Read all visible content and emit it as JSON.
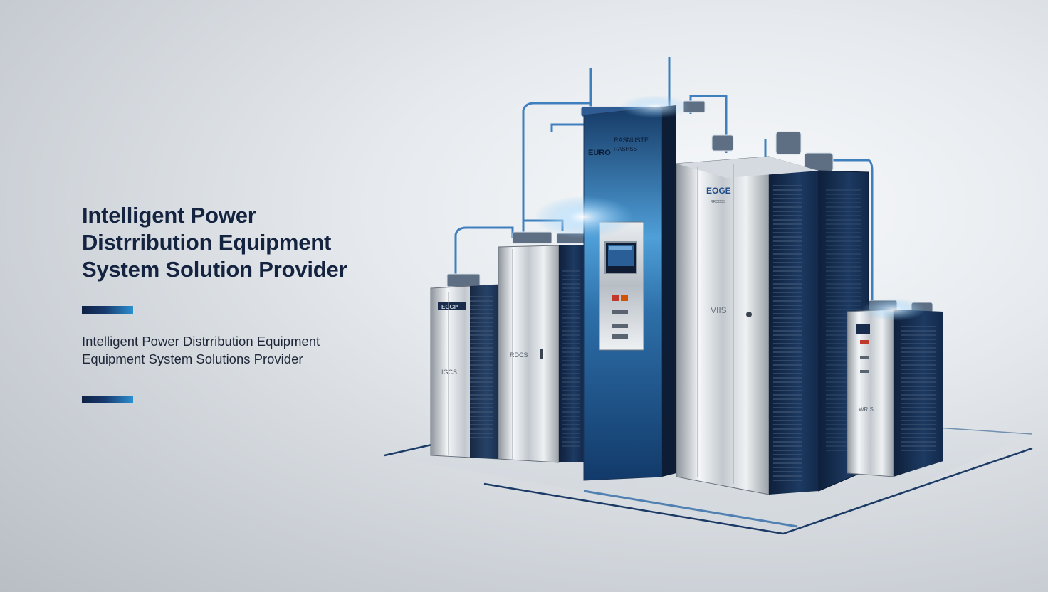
{
  "headline": {
    "line1": "Intelligent Power",
    "line2": "Distrribution Equipment",
    "line3": "System Solution Provider"
  },
  "tagline": {
    "line1": "Intelligent Power Distrribution Equipment",
    "line2": "Equipment System Solutions Provider"
  },
  "cabinet_labels": {
    "main_brand": "EURO",
    "main_model_1": "RASNUSTE",
    "main_model_2": "RASHSS",
    "center_brand": "EOGE",
    "center_sub": "RRDDSS",
    "center_mark": "VIIS",
    "small_left_brand": "EGGP",
    "small_left_mark": "IGCS",
    "mid_left_mark": "RDCS",
    "right_mark": "WRIS"
  },
  "colors": {
    "headline": "#14233f",
    "accent_dark": "#0f2144",
    "accent_light": "#2b8fd0",
    "glow": "#7fc3f0"
  }
}
